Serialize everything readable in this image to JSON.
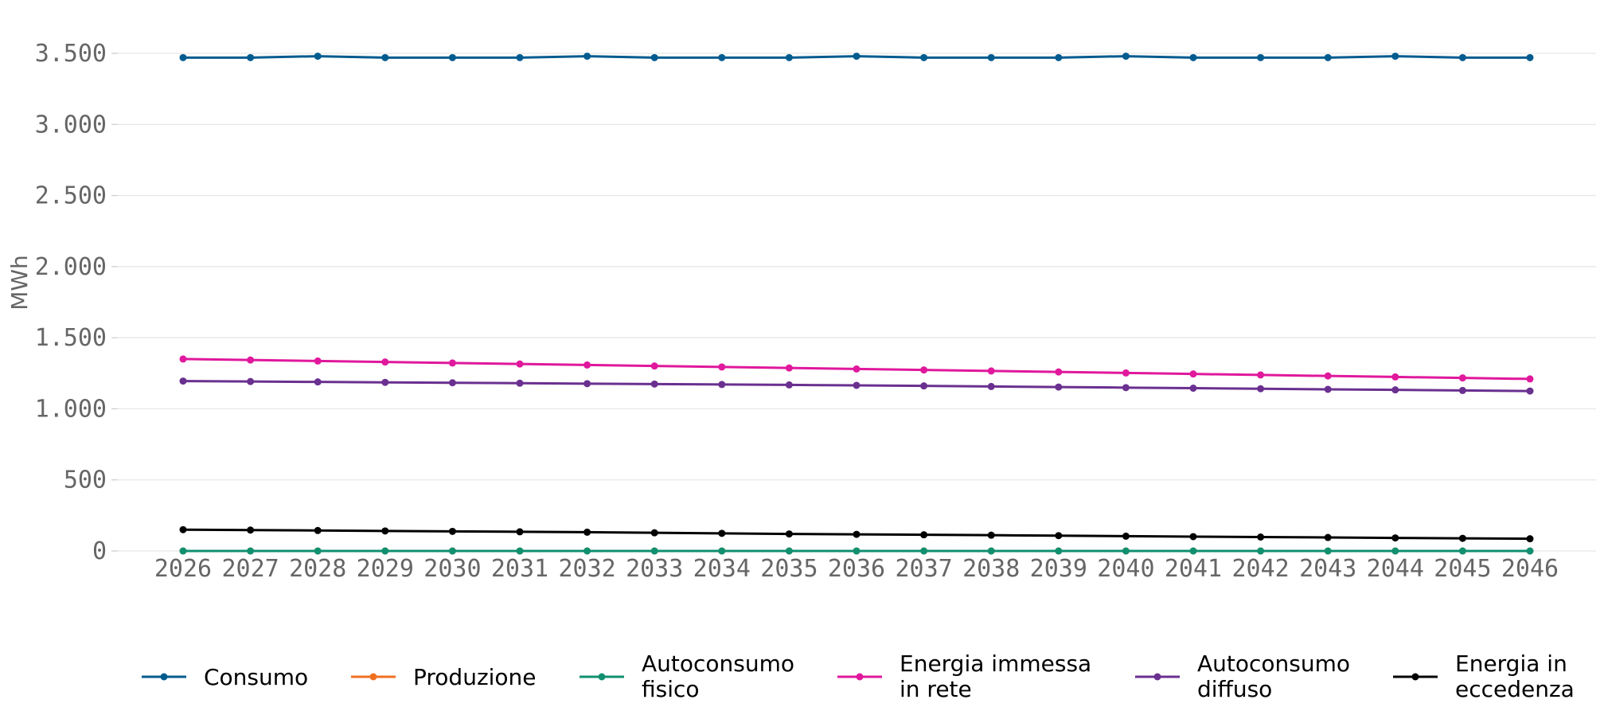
{
  "chart_data": {
    "type": "line",
    "title": "",
    "xlabel": "",
    "ylabel": "MWh",
    "ylim": [
      0,
      3700
    ],
    "yticks": [
      0,
      500,
      1000,
      1500,
      2000,
      2500,
      3000,
      3500
    ],
    "ytick_labels": [
      "0",
      "500",
      "1.000",
      "1.500",
      "2.000",
      "2.500",
      "3.000",
      "3.500"
    ],
    "grid": true,
    "legend_position": "bottom",
    "x": [
      "2026",
      "2027",
      "2028",
      "2029",
      "2030",
      "2031",
      "2032",
      "2033",
      "2034",
      "2035",
      "2036",
      "2037",
      "2038",
      "2039",
      "2040",
      "2041",
      "2042",
      "2043",
      "2044",
      "2045",
      "2046"
    ],
    "series": [
      {
        "name": "Consumo",
        "legend_lines": [
          "Consumo"
        ],
        "color": "#005b8f",
        "values": [
          3470,
          3470,
          3480,
          3470,
          3470,
          3470,
          3480,
          3470,
          3470,
          3470,
          3480,
          3470,
          3470,
          3470,
          3480,
          3470,
          3470,
          3470,
          3480,
          3470,
          3470
        ]
      },
      {
        "name": "Produzione",
        "legend_lines": [
          "Produzione"
        ],
        "color": "#f07020",
        "values": [
          0,
          0,
          0,
          0,
          0,
          0,
          0,
          0,
          0,
          0,
          0,
          0,
          0,
          0,
          0,
          0,
          0,
          0,
          0,
          0,
          0
        ]
      },
      {
        "name": "Autoconsumo fisico",
        "legend_lines": [
          "Autoconsumo",
          "fisico"
        ],
        "color": "#109070",
        "values": [
          0,
          0,
          0,
          0,
          0,
          0,
          0,
          0,
          0,
          0,
          0,
          0,
          0,
          0,
          0,
          0,
          0,
          0,
          0,
          0,
          0
        ]
      },
      {
        "name": "Energia immessa in rete",
        "legend_lines": [
          "Energia immessa",
          "in rete"
        ],
        "color": "#e0189c",
        "values": [
          1350,
          1343,
          1336,
          1329,
          1322,
          1315,
          1308,
          1301,
          1294,
          1287,
          1280,
          1273,
          1266,
          1259,
          1252,
          1245,
          1238,
          1231,
          1224,
          1217,
          1210
        ]
      },
      {
        "name": "Autoconsumo diffuso",
        "legend_lines": [
          "Autoconsumo",
          "diffuso"
        ],
        "color": "#6a3090",
        "values": [
          1195,
          1192,
          1189,
          1186,
          1183,
          1180,
          1177,
          1174,
          1171,
          1168,
          1165,
          1161,
          1157,
          1153,
          1149,
          1145,
          1141,
          1137,
          1133,
          1129,
          1125
        ]
      },
      {
        "name": "Energia in eccedenza",
        "legend_lines": [
          "Energia in",
          "eccedenza"
        ],
        "color": "#000000",
        "values": [
          150,
          147,
          144,
          141,
          138,
          135,
          132,
          128,
          124,
          120,
          117,
          114,
          111,
          108,
          104,
          101,
          98,
          95,
          92,
          89,
          86
        ]
      }
    ]
  }
}
